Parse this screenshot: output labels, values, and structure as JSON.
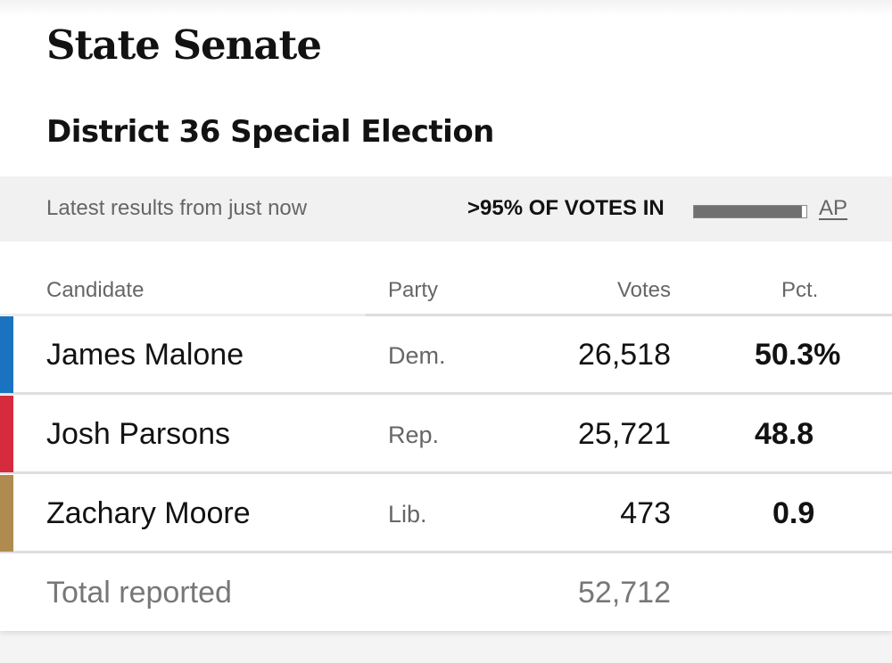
{
  "header": {
    "title": "State Senate",
    "race": "District 36 Special Election"
  },
  "status": {
    "latest": "Latest results from just now",
    "reporting": ">95% OF VOTES IN",
    "reporting_fraction": 0.96,
    "source": "AP"
  },
  "columns": {
    "candidate": "Candidate",
    "party": "Party",
    "votes": "Votes",
    "pct": "Pct."
  },
  "candidates": [
    {
      "name": "James Malone",
      "party": "Dem.",
      "votes": "26,518",
      "pct": "50.3%",
      "color": "#1a73c0"
    },
    {
      "name": "Josh Parsons",
      "party": "Rep.",
      "votes": "25,721",
      "pct": "48.8",
      "color": "#d52b3d"
    },
    {
      "name": "Zachary Moore",
      "party": "Lib.",
      "votes": "473",
      "pct": "0.9",
      "color": "#b08b4f"
    }
  ],
  "total": {
    "label": "Total reported",
    "votes": "52,712"
  }
}
